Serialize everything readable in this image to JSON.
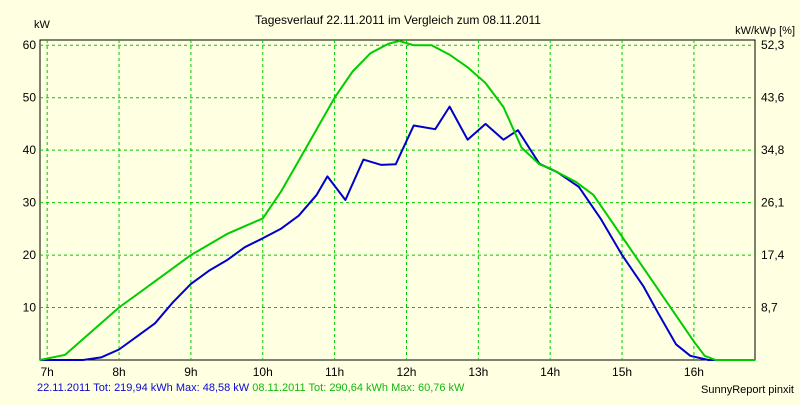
{
  "chart_data": {
    "type": "line",
    "title": "Tagesverlauf 22.11.2011 im Vergleich zum 08.11.2011",
    "ylabel_left": "kW",
    "ylabel_right": "kW/kWp [%]",
    "xlim": [
      6.9,
      16.85
    ],
    "ylim": [
      0,
      61
    ],
    "x_ticks": [
      {
        "value": 7,
        "label": "7h"
      },
      {
        "value": 8,
        "label": "8h"
      },
      {
        "value": 9,
        "label": "9h"
      },
      {
        "value": 10,
        "label": "10h"
      },
      {
        "value": 11,
        "label": "11h"
      },
      {
        "value": 12,
        "label": "12h"
      },
      {
        "value": 13,
        "label": "13h"
      },
      {
        "value": 14,
        "label": "14h"
      },
      {
        "value": 15,
        "label": "15h"
      },
      {
        "value": 16,
        "label": "16h"
      }
    ],
    "y_ticks_left": [
      {
        "value": 10,
        "label": "10"
      },
      {
        "value": 20,
        "label": "20"
      },
      {
        "value": 30,
        "label": "30"
      },
      {
        "value": 40,
        "label": "40"
      },
      {
        "value": 50,
        "label": "50"
      },
      {
        "value": 60,
        "label": "60"
      }
    ],
    "y_ticks_right": [
      {
        "value": 10,
        "label": "8,7"
      },
      {
        "value": 20,
        "label": "17,4"
      },
      {
        "value": 30,
        "label": "26,1"
      },
      {
        "value": 40,
        "label": "34,8"
      },
      {
        "value": 50,
        "label": "43,6"
      },
      {
        "value": 60,
        "label": "52,3"
      }
    ],
    "grid": true,
    "series": [
      {
        "name": "22.11.2011",
        "color": "#0000cc",
        "x": [
          6.9,
          7.5,
          7.75,
          8.0,
          8.25,
          8.5,
          8.75,
          9.0,
          9.25,
          9.5,
          9.75,
          10.0,
          10.25,
          10.5,
          10.75,
          10.9,
          11.15,
          11.4,
          11.65,
          11.85,
          12.1,
          12.4,
          12.6,
          12.85,
          13.1,
          13.35,
          13.55,
          13.85,
          14.1,
          14.4,
          14.7,
          15.0,
          15.3,
          15.5,
          15.75,
          15.95,
          16.2,
          16.85
        ],
        "y": [
          0,
          0,
          0.5,
          2.0,
          4.5,
          7.0,
          11.0,
          14.5,
          17.0,
          19.0,
          21.5,
          23.2,
          25.0,
          27.5,
          31.5,
          35.0,
          30.5,
          38.2,
          37.2,
          37.3,
          44.7,
          44.0,
          48.3,
          42.0,
          45.0,
          42.0,
          43.8,
          37.4,
          35.8,
          33.0,
          27.0,
          20.0,
          14.0,
          9.0,
          3.0,
          0.8,
          0,
          0
        ]
      },
      {
        "name": "08.11.2011",
        "color": "#00cc00",
        "x": [
          6.9,
          7.25,
          7.5,
          8.0,
          8.5,
          9.0,
          9.5,
          9.75,
          10.0,
          10.25,
          10.5,
          10.75,
          11.0,
          11.25,
          11.5,
          11.75,
          11.9,
          12.1,
          12.35,
          12.6,
          12.85,
          13.1,
          13.35,
          13.6,
          13.85,
          14.0,
          14.35,
          14.6,
          14.8,
          15.05,
          15.4,
          15.7,
          16.0,
          16.15,
          16.3,
          16.5,
          16.85
        ],
        "y": [
          0,
          1,
          4,
          10,
          15,
          20,
          24,
          25.5,
          27,
          32,
          38,
          44,
          50,
          55,
          58.5,
          60.3,
          60.8,
          60,
          60,
          58.2,
          55.8,
          52.8,
          48.2,
          40.5,
          37.3,
          36.5,
          34.0,
          31.5,
          27.5,
          22.5,
          15.5,
          9.5,
          3.5,
          0.8,
          0,
          0,
          0
        ]
      }
    ],
    "legend": {
      "s1": "22.11.2011 Tot: 219,94 kWh Max: 48,58 kW",
      "s2": "08.11.2011 Tot: 290,64 kWh Max: 60,76 kW"
    },
    "credit": "SunnyReport pinxit"
  }
}
